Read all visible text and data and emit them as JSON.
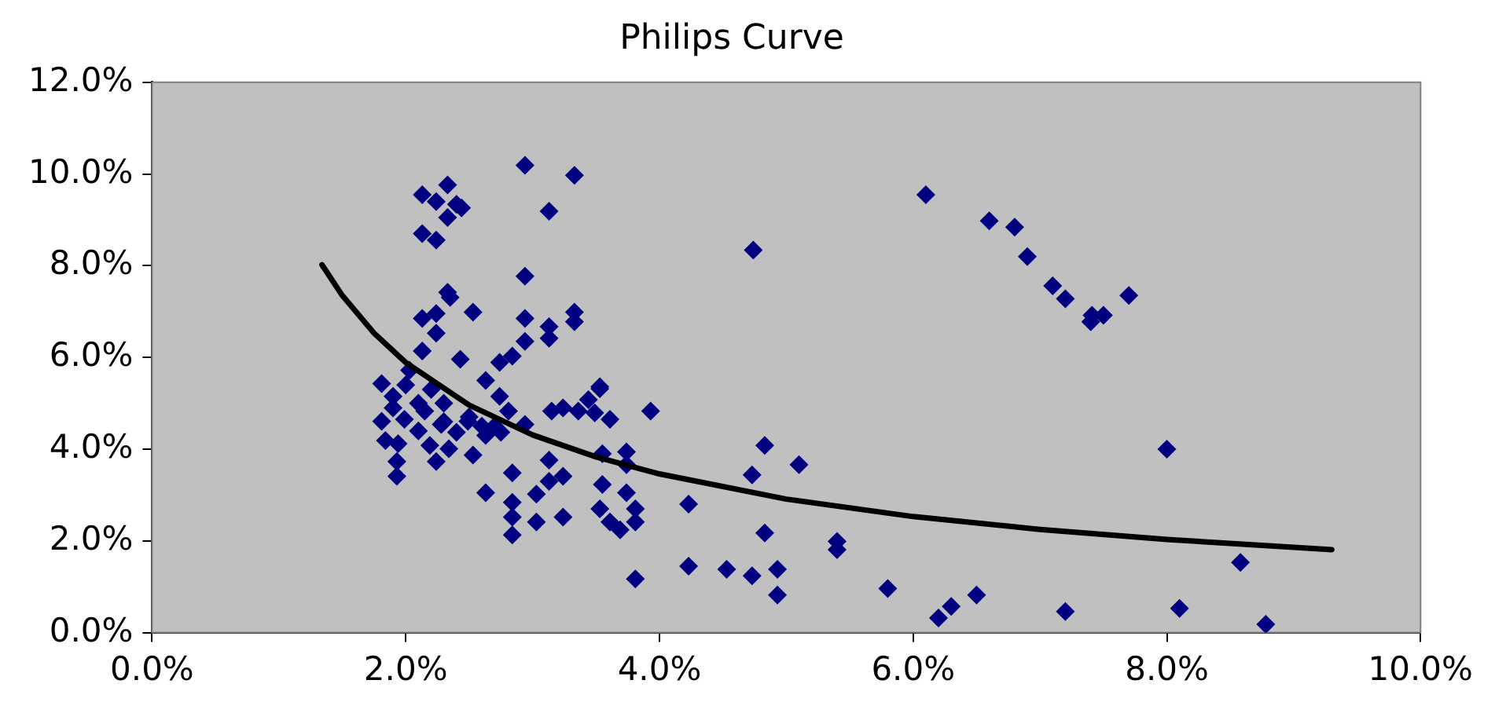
{
  "chart_data": {
    "type": "scatter",
    "title": "Philips Curve",
    "xlim": [
      0,
      10
    ],
    "ylim": [
      0,
      12
    ],
    "xticks": [
      {
        "value": 0,
        "label": "0.0%"
      },
      {
        "value": 2,
        "label": "2.0%"
      },
      {
        "value": 4,
        "label": "4.0%"
      },
      {
        "value": 6,
        "label": "6.0%"
      },
      {
        "value": 8,
        "label": "8.0%"
      },
      {
        "value": 10,
        "label": "10.0%"
      }
    ],
    "yticks": [
      {
        "value": 0,
        "label": "0.0%"
      },
      {
        "value": 2,
        "label": "2.0%"
      },
      {
        "value": 4,
        "label": "4.0%"
      },
      {
        "value": 6,
        "label": "6.0%"
      },
      {
        "value": 8,
        "label": "8.0%"
      },
      {
        "value": 10,
        "label": "10.0%"
      },
      {
        "value": 12,
        "label": "12.0%"
      }
    ],
    "legend": false,
    "series": [
      {
        "color": "#000080",
        "marker": "diamond",
        "x": [
          4.74,
          6.1,
          6.6,
          6.8,
          6.9,
          7.1,
          7.2,
          7.4,
          7.41,
          7.5,
          7.7,
          8.0,
          4.23,
          4.83,
          4.73,
          5.1,
          4.83,
          5.4,
          5.4,
          4.23,
          4.53,
          4.73,
          4.93,
          4.93,
          5.8,
          6.2,
          6.3,
          6.5,
          7.2,
          8.1,
          8.58,
          8.78,
          2.94,
          3.33,
          3.13,
          2.33,
          2.13,
          2.24,
          2.4,
          2.33,
          2.44,
          2.13,
          2.24,
          2.94,
          2.33,
          2.35,
          2.53,
          2.13,
          2.24,
          2.24,
          2.94,
          3.33,
          3.33,
          3.13,
          3.13,
          2.94,
          2.13,
          2.43,
          2.74,
          2.84,
          2.63,
          3.53,
          1.81,
          2.03,
          1.9,
          1.81,
          1.99,
          2.15,
          1.84,
          1.94,
          1.93,
          1.93,
          2.24,
          2.19,
          2.34,
          2.53,
          2.28,
          2.4,
          2.74,
          2.81,
          2.94,
          2.75,
          2.63,
          2.49,
          2.84,
          2.63,
          2.84,
          2.84,
          2.84,
          3.03,
          3.03,
          3.13,
          3.13,
          3.24,
          3.24,
          3.15,
          3.24,
          3.36,
          3.44,
          3.53,
          3.61,
          3.49,
          3.55,
          3.74,
          3.74,
          3.55,
          3.74,
          3.53,
          3.61,
          3.81,
          3.81,
          3.69,
          3.93,
          3.81,
          2.1,
          2.0,
          2.2,
          1.9,
          2.3,
          2.5,
          2.6,
          2.1,
          2.3,
          2.7
        ],
        "values": [
          8.34,
          9.55,
          8.98,
          8.84,
          8.2,
          7.56,
          7.28,
          6.78,
          6.92,
          6.92,
          7.35,
          4.0,
          2.8,
          4.08,
          3.44,
          3.66,
          2.17,
          1.99,
          1.81,
          1.45,
          1.38,
          1.24,
          1.38,
          0.82,
          0.96,
          0.32,
          0.57,
          0.82,
          0.46,
          0.53,
          1.53,
          0.18,
          10.19,
          9.97,
          9.19,
          9.76,
          9.55,
          9.4,
          9.34,
          9.05,
          9.26,
          8.7,
          8.56,
          7.77,
          7.42,
          7.31,
          6.99,
          6.85,
          6.96,
          6.53,
          6.85,
          6.99,
          6.78,
          6.67,
          6.42,
          6.35,
          6.14,
          5.96,
          5.89,
          6.03,
          5.5,
          5.36,
          5.43,
          5.72,
          5.15,
          4.61,
          4.65,
          4.83,
          4.19,
          4.12,
          3.73,
          3.41,
          3.73,
          4.08,
          4.01,
          3.87,
          4.54,
          4.37,
          5.15,
          4.83,
          4.54,
          4.37,
          4.3,
          4.61,
          3.48,
          3.05,
          2.84,
          2.52,
          2.13,
          2.41,
          3.02,
          3.76,
          3.3,
          3.41,
          2.52,
          4.83,
          4.9,
          4.83,
          5.08,
          5.32,
          4.65,
          4.79,
          3.9,
          3.94,
          3.66,
          3.23,
          3.05,
          2.7,
          2.41,
          2.7,
          2.41,
          2.24,
          4.83,
          1.17,
          5.0,
          5.4,
          5.3,
          4.9,
          5.0,
          4.7,
          4.5,
          4.4,
          4.6,
          4.5
        ]
      },
      {
        "type": "line",
        "color": "#000000",
        "marker": "none",
        "x": [
          1.34,
          1.5,
          1.75,
          2,
          2.5,
          3,
          3.5,
          4,
          5,
          6,
          7,
          8,
          9,
          9.3
        ],
        "values": [
          8.02,
          7.35,
          6.53,
          5.89,
          4.96,
          4.31,
          3.83,
          3.46,
          2.91,
          2.53,
          2.25,
          2.03,
          1.86,
          1.81
        ]
      }
    ]
  }
}
